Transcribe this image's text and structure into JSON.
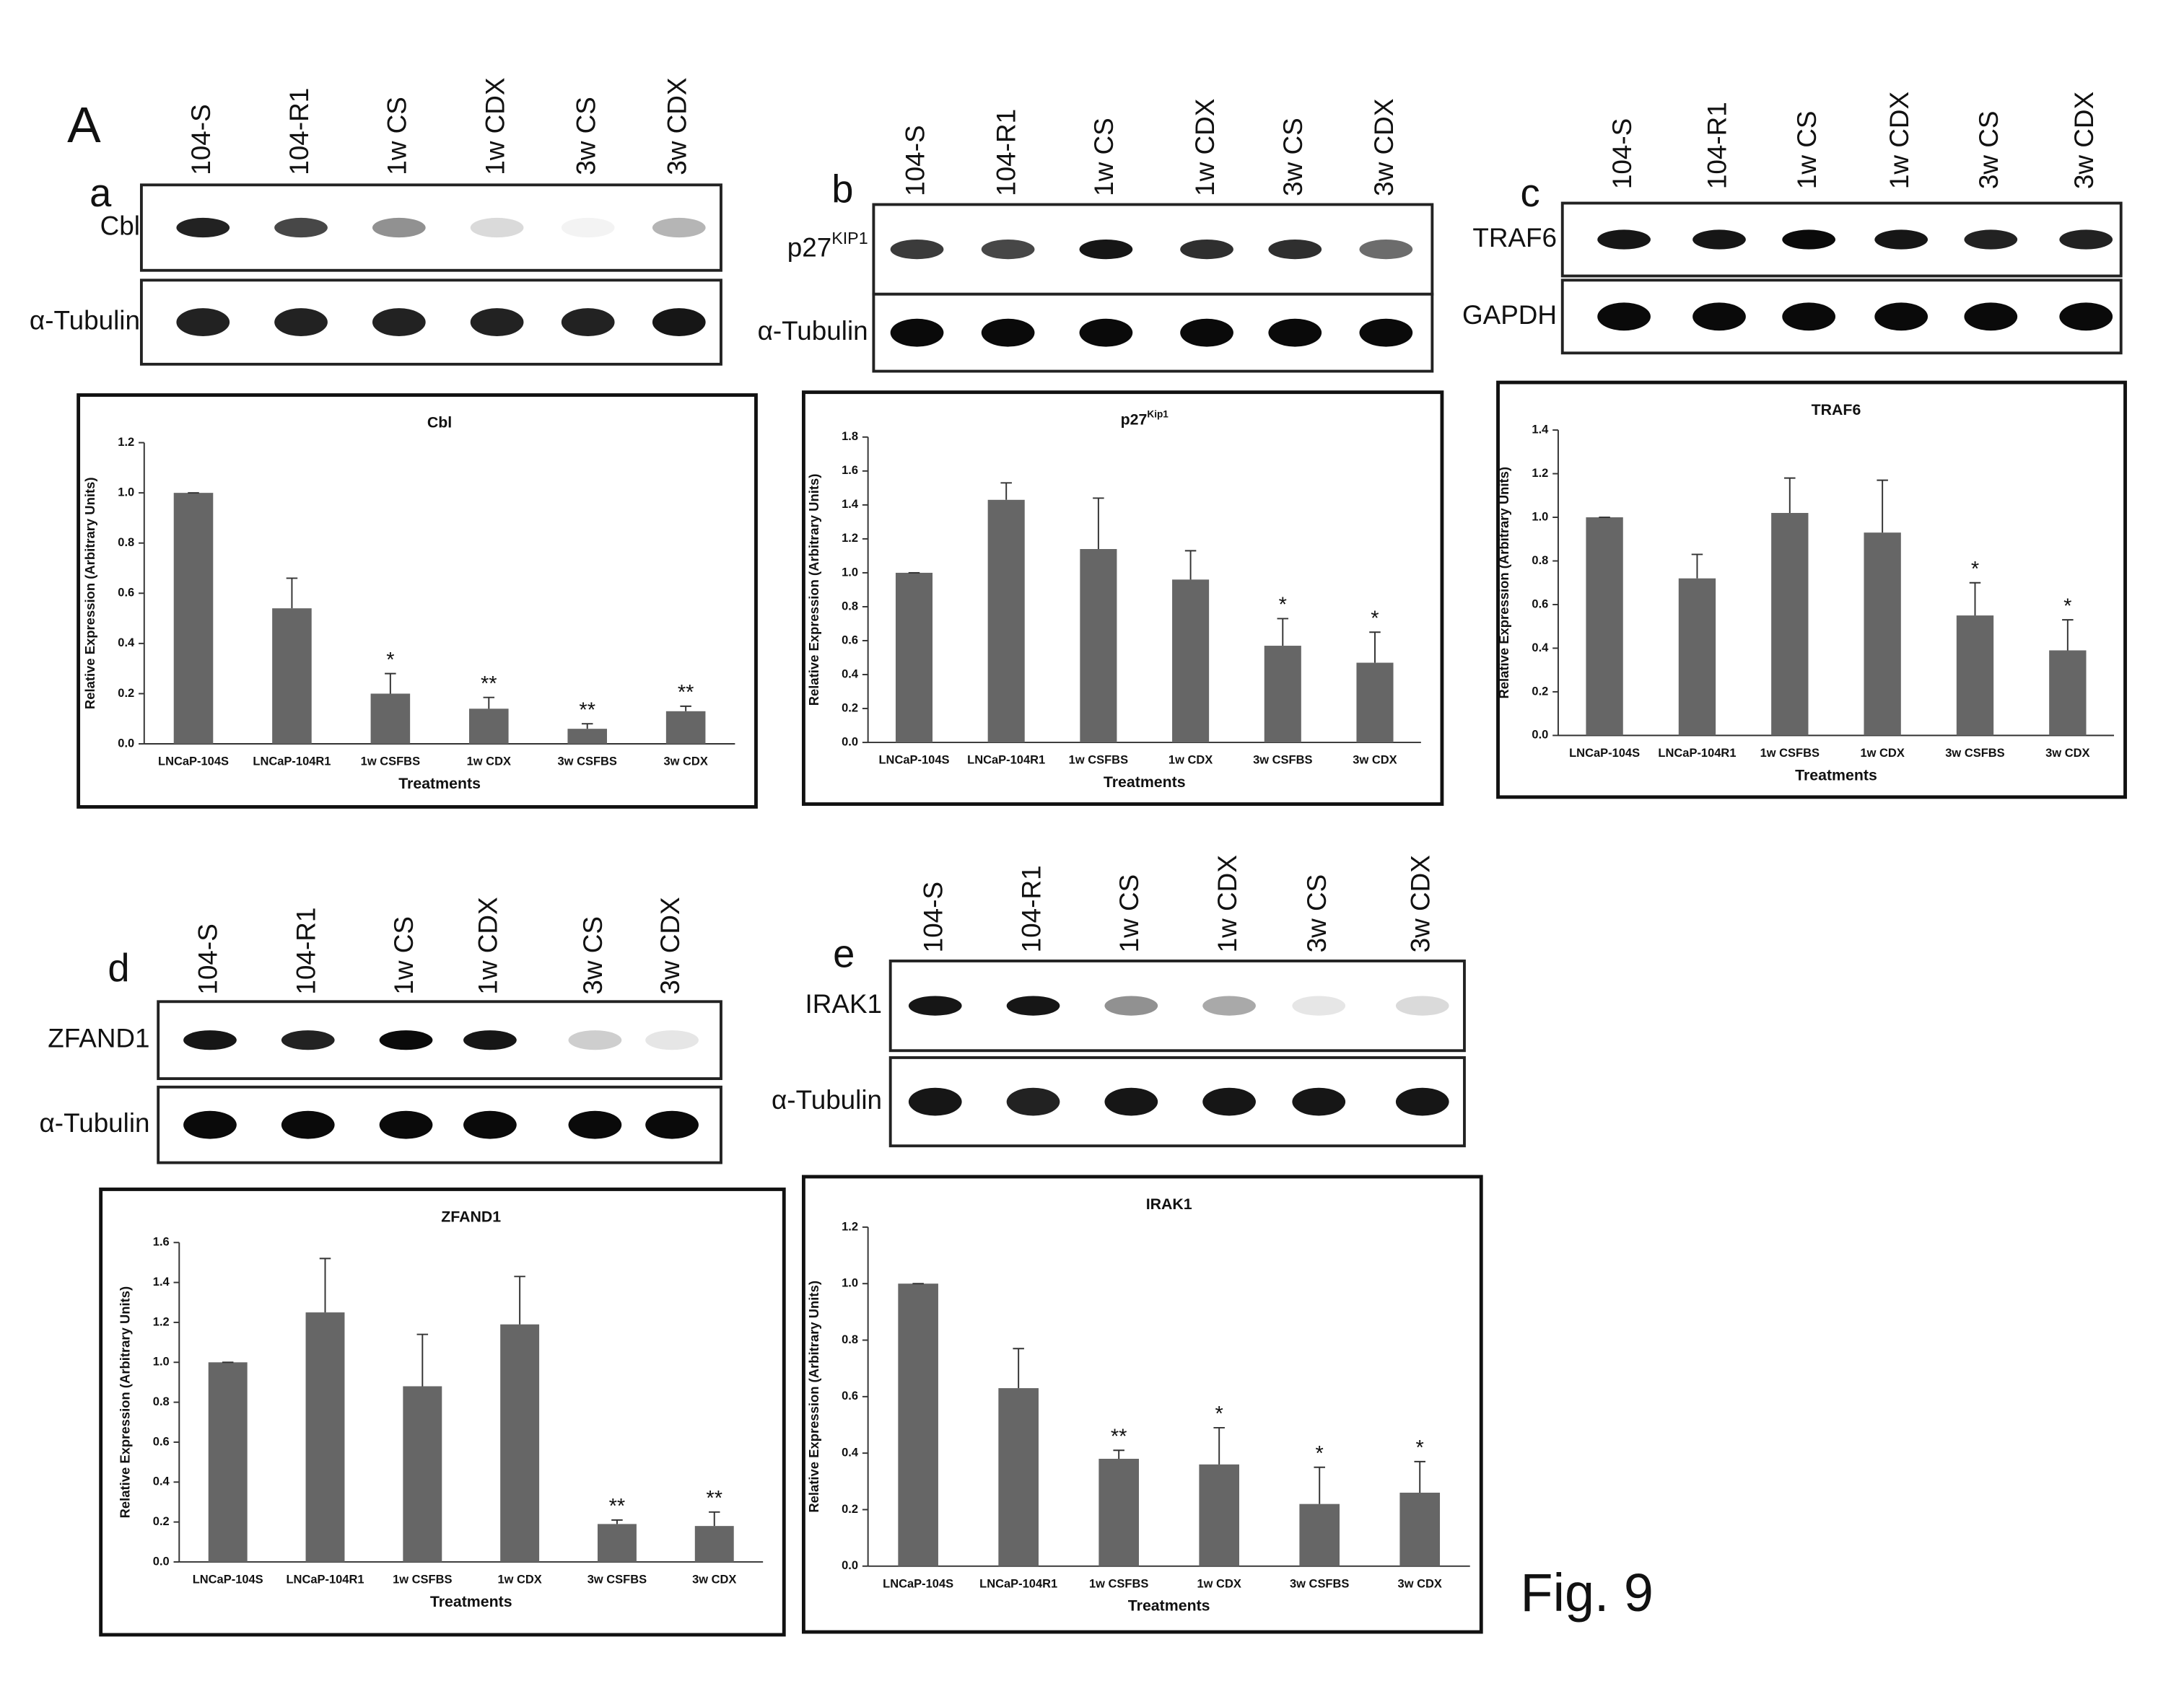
{
  "panel_label": "A",
  "figure_label": "Fig. 9",
  "blots": [
    {
      "letter": "a",
      "lanes": [
        "104-S",
        "104-R1",
        "1w CS",
        "1w CDX",
        "3w CS",
        "3w CDX"
      ],
      "rows": [
        {
          "label": "Cbl"
        },
        {
          "label": "α-Tubulin"
        }
      ]
    },
    {
      "letter": "b",
      "lanes": [
        "104-S",
        "104-R1",
        "1w CS",
        "1w CDX",
        "3w CS",
        "3w CDX"
      ],
      "rows": [
        {
          "label": "p27",
          "label_sup": "KIP1"
        },
        {
          "label": "α-Tubulin"
        }
      ]
    },
    {
      "letter": "c",
      "lanes": [
        "104-S",
        "104-R1",
        "1w CS",
        "1w CDX",
        "3w CS",
        "3w CDX"
      ],
      "rows": [
        {
          "label": "TRAF6"
        },
        {
          "label": "GAPDH"
        }
      ]
    },
    {
      "letter": "d",
      "lanes": [
        "104-S",
        "104-R1",
        "1w CS",
        "1w CDX",
        "3w CS",
        "3w CDX"
      ],
      "rows": [
        {
          "label": "ZFAND1"
        },
        {
          "label": "α-Tubulin"
        }
      ]
    },
    {
      "letter": "e",
      "lanes": [
        "104-S",
        "104-R1",
        "1w CS",
        "1w CDX",
        "3w CS",
        "3w CDX"
      ],
      "rows": [
        {
          "label": "IRAK1"
        },
        {
          "label": "α-Tubulin"
        }
      ]
    }
  ],
  "chart_data": [
    {
      "type": "bar",
      "title": "Cbl",
      "xlabel": "Treatments",
      "ylabel": "Relative Expression (Arbitrary Units)",
      "categories": [
        "LNCaP-104S",
        "LNCaP-104R1",
        "1w CSFBS",
        "1w CDX",
        "3w CSFBS",
        "3w CDX"
      ],
      "values": [
        1.0,
        0.54,
        0.2,
        0.14,
        0.06,
        0.13
      ],
      "errors": [
        0,
        0.12,
        0.08,
        0.045,
        0.02,
        0.02
      ],
      "significance": [
        null,
        null,
        "*",
        "**",
        "**",
        "**"
      ],
      "color": "#666666",
      "ylim": [
        0,
        1.2
      ],
      "yticks": [
        {
          "value": 0,
          "label": "0.0"
        },
        {
          "value": 0.2,
          "label": "0.2"
        },
        {
          "value": 0.4,
          "label": "0.4"
        },
        {
          "value": 0.6,
          "label": "0.6"
        },
        {
          "value": 0.8,
          "label": "0.8"
        },
        {
          "value": 1,
          "label": "1.0"
        },
        {
          "value": 1.2,
          "label": "1.2"
        }
      ]
    },
    {
      "type": "bar",
      "title": "p27",
      "title_sup": "Kip1",
      "xlabel": "Treatments",
      "ylabel": "Relative Expression (Arbitrary Units)",
      "categories": [
        "LNCaP-104S",
        "LNCaP-104R1",
        "1w CSFBS",
        "1w CDX",
        "3w CSFBS",
        "3w CDX"
      ],
      "values": [
        1.0,
        1.43,
        1.14,
        0.96,
        0.57,
        0.47
      ],
      "errors": [
        0,
        0.1,
        0.3,
        0.17,
        0.16,
        0.18
      ],
      "significance": [
        null,
        null,
        null,
        null,
        "*",
        "*"
      ],
      "color": "#666666",
      "ylim": [
        0,
        1.8
      ],
      "yticks": [
        {
          "value": 0,
          "label": "0.0"
        },
        {
          "value": 0.2,
          "label": "0.2"
        },
        {
          "value": 0.4,
          "label": "0.4"
        },
        {
          "value": 0.6,
          "label": "0.6"
        },
        {
          "value": 0.8,
          "label": "0.8"
        },
        {
          "value": 1,
          "label": "1.0"
        },
        {
          "value": 1.2,
          "label": "1.2"
        },
        {
          "value": 1.4,
          "label": "1.4"
        },
        {
          "value": 1.6,
          "label": "1.6"
        },
        {
          "value": 1.8,
          "label": "1.8"
        }
      ]
    },
    {
      "type": "bar",
      "title": "TRAF6",
      "xlabel": "Treatments",
      "ylabel": "Relative Expression (Arbitrary Units)",
      "categories": [
        "LNCaP-104S",
        "LNCaP-104R1",
        "1w CSFBS",
        "1w CDX",
        "3w CSFBS",
        "3w CDX"
      ],
      "values": [
        1.0,
        0.72,
        1.02,
        0.93,
        0.55,
        0.39
      ],
      "errors": [
        0,
        0.11,
        0.16,
        0.24,
        0.15,
        0.14
      ],
      "significance": [
        null,
        null,
        null,
        null,
        "*",
        "*"
      ],
      "color": "#666666",
      "ylim": [
        0,
        1.4
      ],
      "yticks": [
        {
          "value": 0,
          "label": "0.0"
        },
        {
          "value": 0.2,
          "label": "0.2"
        },
        {
          "value": 0.4,
          "label": "0.4"
        },
        {
          "value": 0.6,
          "label": "0.6"
        },
        {
          "value": 0.8,
          "label": "0.8"
        },
        {
          "value": 1,
          "label": "1.0"
        },
        {
          "value": 1.2,
          "label": "1.2"
        },
        {
          "value": 1.4,
          "label": "1.4"
        }
      ]
    },
    {
      "type": "bar",
      "title": "ZFAND1",
      "xlabel": "Treatments",
      "ylabel": "Relative Expression (Arbitrary Units)",
      "categories": [
        "LNCaP-104S",
        "LNCaP-104R1",
        "1w CSFBS",
        "1w CDX",
        "3w CSFBS",
        "3w CDX"
      ],
      "values": [
        1.0,
        1.25,
        0.88,
        1.19,
        0.19,
        0.18
      ],
      "errors": [
        0,
        0.27,
        0.26,
        0.24,
        0.02,
        0.07
      ],
      "significance": [
        null,
        null,
        null,
        null,
        "**",
        "**"
      ],
      "color": "#666666",
      "ylim": [
        0,
        1.6
      ],
      "yticks": [
        {
          "value": 0,
          "label": "0.0"
        },
        {
          "value": 0.2,
          "label": "0.2"
        },
        {
          "value": 0.4,
          "label": "0.4"
        },
        {
          "value": 0.6,
          "label": "0.6"
        },
        {
          "value": 0.8,
          "label": "0.8"
        },
        {
          "value": 1,
          "label": "1.0"
        },
        {
          "value": 1.2,
          "label": "1.2"
        },
        {
          "value": 1.4,
          "label": "1.4"
        },
        {
          "value": 1.6,
          "label": "1.6"
        }
      ]
    },
    {
      "type": "bar",
      "title": "IRAK1",
      "xlabel": "Treatments",
      "ylabel": "Relative Expression (Arbitrary Units)",
      "categories": [
        "LNCaP-104S",
        "LNCaP-104R1",
        "1w CSFBS",
        "1w CDX",
        "3w CSFBS",
        "3w CDX"
      ],
      "values": [
        1.0,
        0.63,
        0.38,
        0.36,
        0.22,
        0.26
      ],
      "errors": [
        0,
        0.14,
        0.03,
        0.13,
        0.13,
        0.11
      ],
      "significance": [
        null,
        null,
        "**",
        "*",
        "*",
        "*"
      ],
      "color": "#666666",
      "ylim": [
        0,
        1.2
      ],
      "yticks": [
        {
          "value": 0,
          "label": "0.0"
        },
        {
          "value": 0.2,
          "label": "0.2"
        },
        {
          "value": 0.4,
          "label": "0.4"
        },
        {
          "value": 0.6,
          "label": "0.6"
        },
        {
          "value": 0.8,
          "label": "0.8"
        },
        {
          "value": 1,
          "label": "1.0"
        },
        {
          "value": 1.2,
          "label": "1.2"
        }
      ]
    }
  ]
}
